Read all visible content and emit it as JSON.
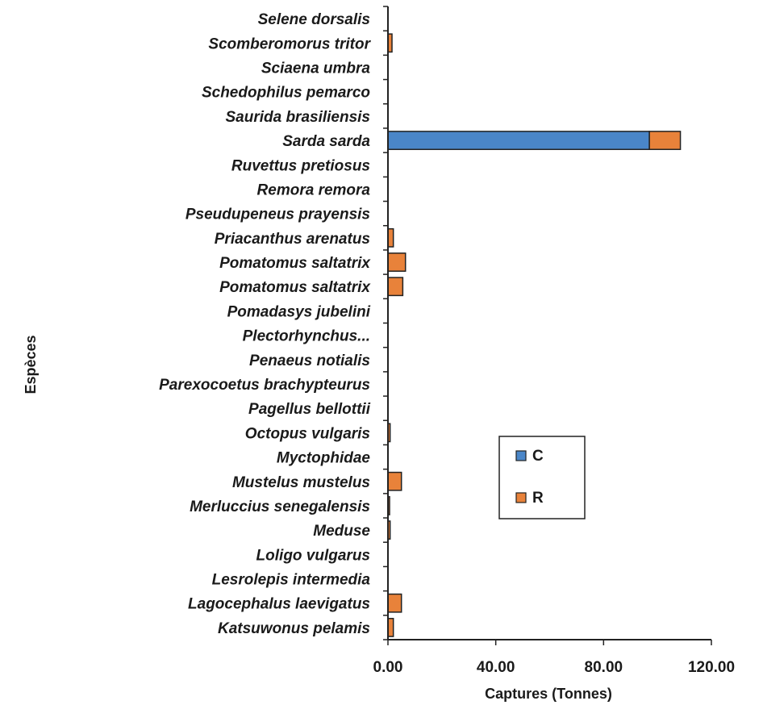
{
  "chart_data": {
    "type": "bar",
    "orientation": "horizontal",
    "stacked": true,
    "xlabel": "Captures (Tonnes)",
    "ylabel": "Espèces",
    "xlim": [
      0,
      120
    ],
    "xticks": [
      "0.00",
      "40.00",
      "80.00",
      "120.00"
    ],
    "xtick_values": [
      0,
      40,
      80,
      120
    ],
    "grid": false,
    "legend_position": "right",
    "categories": [
      "Selene dorsalis",
      "Scomberomorus tritor",
      "Sciaena umbra",
      "Schedophilus pemarco",
      "Saurida brasiliensis",
      "Sarda sarda",
      "Ruvettus pretiosus",
      "Remora remora",
      "Pseudupeneus prayensis",
      "Priacanthus arenatus",
      "Pomatomus saltatrix",
      "Pomatomus saltatrix",
      "Pomadasys jubelini",
      "Plectorhynchus...",
      "Penaeus notialis",
      "Parexocoetus brachypteurus",
      "Pagellus bellottii",
      "Octopus vulgaris",
      "Myctophidae",
      "Mustelus mustelus",
      "Merluccius senegalensis",
      "Meduse",
      "Loligo vulgarus",
      "Lesrolepis intermedia",
      "Lagocephalus laevigatus",
      "Katsuwonus pelamis"
    ],
    "series": [
      {
        "name": "C",
        "color": "#4a86c8",
        "values": [
          0,
          0,
          0,
          0,
          0,
          97,
          0,
          0,
          0,
          0,
          0,
          0,
          0,
          0,
          0,
          0,
          0,
          0,
          0,
          0,
          0,
          0,
          0,
          0,
          0,
          0
        ]
      },
      {
        "name": "R",
        "color": "#e8823a",
        "values": [
          0,
          1.5,
          0,
          0,
          0,
          11.5,
          0,
          0,
          0,
          2,
          6.5,
          5.5,
          0,
          0,
          0,
          0,
          0,
          0.8,
          0,
          5,
          0.6,
          0.8,
          0,
          0,
          5,
          2
        ]
      }
    ]
  }
}
